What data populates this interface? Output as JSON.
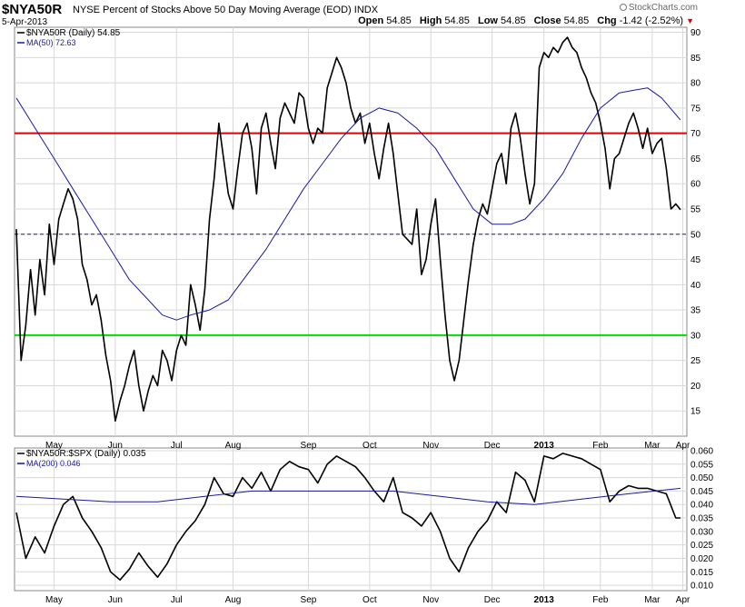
{
  "header": {
    "symbol": "$NYA50R",
    "description": "NYSE Percent of Stocks Above 50 Day Moving Average (EOD)  INDX",
    "date": "5-Apr-2013",
    "credit": "StockCharts.com",
    "open_label": "Open",
    "open": "54.85",
    "high_label": "High",
    "high": "54.85",
    "low_label": "Low",
    "low": "54.85",
    "close_label": "Close",
    "close": "54.85",
    "chg_label": "Chg",
    "chg": "-1.42 (-2.52%)",
    "chg_icon": "down-triangle-icon"
  },
  "colors": {
    "price": "#000000",
    "ma": "#1a1aa0",
    "red_line": "#e00000",
    "green_line": "#00dd00",
    "dash": "#1a1aa0",
    "grid": "#d8d8d8"
  },
  "x_axis": [
    "May",
    "Jun",
    "Jul",
    "Aug",
    "Sep",
    "Oct",
    "Nov",
    "Dec",
    "2013",
    "Feb",
    "Mar",
    "Apr"
  ],
  "chart_data": [
    {
      "type": "line",
      "legend": [
        "$NYA50R (Daily) 54.85",
        "MA(50) 72.63"
      ],
      "ylim": [
        10,
        91
      ],
      "yticks": [
        15,
        20,
        25,
        30,
        35,
        40,
        45,
        50,
        55,
        60,
        65,
        70,
        75,
        80,
        85,
        90
      ],
      "reference_lines": [
        70,
        50,
        30
      ],
      "series": [
        {
          "name": "$NYA50R (Daily) 54.85",
          "points": [
            [
              0,
              51
            ],
            [
              1,
              25
            ],
            [
              2,
              32
            ],
            [
              3,
              43
            ],
            [
              4,
              34
            ],
            [
              5,
              45
            ],
            [
              6,
              38
            ],
            [
              7,
              52
            ],
            [
              8,
              44
            ],
            [
              9,
              53
            ],
            [
              10,
              56
            ],
            [
              11,
              59
            ],
            [
              12,
              57
            ],
            [
              13,
              53
            ],
            [
              14,
              44
            ],
            [
              15,
              41
            ],
            [
              16,
              36
            ],
            [
              17,
              38
            ],
            [
              18,
              33
            ],
            [
              19,
              26
            ],
            [
              20,
              21
            ],
            [
              21,
              13
            ],
            [
              22,
              17
            ],
            [
              23,
              20
            ],
            [
              24,
              24
            ],
            [
              25,
              27
            ],
            [
              26,
              20
            ],
            [
              27,
              15
            ],
            [
              28,
              19
            ],
            [
              29,
              22
            ],
            [
              30,
              20
            ],
            [
              31,
              27
            ],
            [
              32,
              25
            ],
            [
              33,
              21
            ],
            [
              34,
              27
            ],
            [
              35,
              30
            ],
            [
              36,
              28
            ],
            [
              37,
              40
            ],
            [
              38,
              36
            ],
            [
              39,
              31
            ],
            [
              40,
              39
            ],
            [
              41,
              53
            ],
            [
              42,
              61
            ],
            [
              43,
              72
            ],
            [
              44,
              65
            ],
            [
              45,
              58
            ],
            [
              46,
              55
            ],
            [
              47,
              63
            ],
            [
              48,
              70
            ],
            [
              49,
              72
            ],
            [
              50,
              67
            ],
            [
              51,
              58
            ],
            [
              52,
              71
            ],
            [
              53,
              74
            ],
            [
              54,
              68
            ],
            [
              55,
              63
            ],
            [
              56,
              73
            ],
            [
              57,
              76
            ],
            [
              58,
              74
            ],
            [
              59,
              72
            ],
            [
              60,
              78
            ],
            [
              61,
              77
            ],
            [
              62,
              71
            ],
            [
              63,
              68
            ],
            [
              64,
              71
            ],
            [
              65,
              70
            ],
            [
              66,
              79
            ],
            [
              67,
              82
            ],
            [
              68,
              85
            ],
            [
              69,
              83
            ],
            [
              70,
              80
            ],
            [
              71,
              75
            ],
            [
              72,
              72
            ],
            [
              73,
              74
            ],
            [
              74,
              68
            ],
            [
              75,
              72
            ],
            [
              76,
              66
            ],
            [
              77,
              61
            ],
            [
              78,
              67
            ],
            [
              79,
              72
            ],
            [
              80,
              66
            ],
            [
              81,
              58
            ],
            [
              82,
              50
            ],
            [
              83,
              49
            ],
            [
              84,
              48
            ],
            [
              85,
              55
            ],
            [
              86,
              42
            ],
            [
              87,
              45
            ],
            [
              88,
              52
            ],
            [
              89,
              57
            ],
            [
              90,
              45
            ],
            [
              91,
              34
            ],
            [
              92,
              25
            ],
            [
              93,
              21
            ],
            [
              94,
              25
            ],
            [
              95,
              33
            ],
            [
              96,
              41
            ],
            [
              97,
              48
            ],
            [
              98,
              53
            ],
            [
              99,
              56
            ],
            [
              100,
              54
            ],
            [
              101,
              59
            ],
            [
              102,
              64
            ],
            [
              103,
              66
            ],
            [
              104,
              60
            ],
            [
              105,
              71
            ],
            [
              106,
              74
            ],
            [
              107,
              69
            ],
            [
              108,
              62
            ],
            [
              109,
              56
            ],
            [
              110,
              60
            ],
            [
              111,
              83
            ],
            [
              112,
              86
            ],
            [
              113,
              85
            ],
            [
              114,
              87
            ],
            [
              115,
              86
            ],
            [
              116,
              88
            ],
            [
              117,
              89
            ],
            [
              118,
              87
            ],
            [
              119,
              86
            ],
            [
              120,
              83
            ],
            [
              121,
              81
            ],
            [
              122,
              78
            ],
            [
              123,
              76
            ],
            [
              124,
              72
            ],
            [
              125,
              67
            ],
            [
              126,
              59
            ],
            [
              127,
              65
            ],
            [
              128,
              66
            ],
            [
              129,
              69
            ],
            [
              130,
              72
            ],
            [
              131,
              74
            ],
            [
              132,
              71
            ],
            [
              133,
              67
            ],
            [
              134,
              71
            ],
            [
              135,
              66
            ],
            [
              136,
              68
            ],
            [
              137,
              69
            ],
            [
              138,
              63
            ],
            [
              139,
              55
            ],
            [
              140,
              56
            ],
            [
              141,
              54.85
            ]
          ]
        },
        {
          "name": "MA(50) 72.63",
          "points": [
            [
              0,
              77
            ],
            [
              4,
              71
            ],
            [
              8,
              65
            ],
            [
              12,
              59
            ],
            [
              16,
              53
            ],
            [
              20,
              47
            ],
            [
              24,
              41
            ],
            [
              28,
              37
            ],
            [
              31,
              34
            ],
            [
              34,
              33
            ],
            [
              37,
              34
            ],
            [
              41,
              35
            ],
            [
              45,
              37
            ],
            [
              49,
              42
            ],
            [
              53,
              47
            ],
            [
              57,
              53
            ],
            [
              61,
              59
            ],
            [
              65,
              64
            ],
            [
              69,
              69
            ],
            [
              73,
              73
            ],
            [
              77,
              75
            ],
            [
              81,
              74
            ],
            [
              85,
              71
            ],
            [
              89,
              67
            ],
            [
              93,
              61
            ],
            [
              97,
              55
            ],
            [
              101,
              52
            ],
            [
              105,
              52
            ],
            [
              108,
              53
            ],
            [
              112,
              57
            ],
            [
              116,
              62
            ],
            [
              120,
              69
            ],
            [
              124,
              75
            ],
            [
              128,
              78
            ],
            [
              131,
              78.5
            ],
            [
              134,
              79
            ],
            [
              137,
              77
            ],
            [
              141,
              72.63
            ]
          ]
        }
      ]
    },
    {
      "type": "line",
      "legend": [
        "$NYA50R:$SPX (Daily) 0.035",
        "MA(200) 0.046"
      ],
      "ylim": [
        0.008,
        0.061
      ],
      "yticks": [
        0.01,
        0.015,
        0.02,
        0.025,
        0.03,
        0.035,
        0.04,
        0.045,
        0.05,
        0.055,
        0.06
      ],
      "series": [
        {
          "name": "$NYA50R:$SPX (Daily) 0.035",
          "points": [
            [
              0,
              0.037
            ],
            [
              2,
              0.02
            ],
            [
              4,
              0.028
            ],
            [
              6,
              0.022
            ],
            [
              8,
              0.032
            ],
            [
              10,
              0.04
            ],
            [
              12,
              0.043
            ],
            [
              14,
              0.035
            ],
            [
              16,
              0.03
            ],
            [
              18,
              0.024
            ],
            [
              20,
              0.015
            ],
            [
              22,
              0.012
            ],
            [
              24,
              0.016
            ],
            [
              26,
              0.022
            ],
            [
              28,
              0.017
            ],
            [
              30,
              0.013
            ],
            [
              32,
              0.018
            ],
            [
              34,
              0.025
            ],
            [
              36,
              0.03
            ],
            [
              38,
              0.034
            ],
            [
              40,
              0.04
            ],
            [
              42,
              0.05
            ],
            [
              44,
              0.044
            ],
            [
              46,
              0.043
            ],
            [
              48,
              0.05
            ],
            [
              50,
              0.046
            ],
            [
              52,
              0.052
            ],
            [
              54,
              0.045
            ],
            [
              56,
              0.053
            ],
            [
              58,
              0.056
            ],
            [
              60,
              0.054
            ],
            [
              62,
              0.053
            ],
            [
              64,
              0.048
            ],
            [
              66,
              0.055
            ],
            [
              68,
              0.058
            ],
            [
              70,
              0.056
            ],
            [
              72,
              0.054
            ],
            [
              74,
              0.05
            ],
            [
              76,
              0.045
            ],
            [
              78,
              0.041
            ],
            [
              80,
              0.05
            ],
            [
              82,
              0.037
            ],
            [
              84,
              0.035
            ],
            [
              86,
              0.032
            ],
            [
              88,
              0.037
            ],
            [
              90,
              0.03
            ],
            [
              92,
              0.02
            ],
            [
              94,
              0.015
            ],
            [
              96,
              0.024
            ],
            [
              98,
              0.03
            ],
            [
              100,
              0.034
            ],
            [
              102,
              0.041
            ],
            [
              104,
              0.037
            ],
            [
              106,
              0.052
            ],
            [
              108,
              0.049
            ],
            [
              110,
              0.041
            ],
            [
              112,
              0.058
            ],
            [
              114,
              0.057
            ],
            [
              116,
              0.059
            ],
            [
              118,
              0.058
            ],
            [
              120,
              0.057
            ],
            [
              122,
              0.055
            ],
            [
              124,
              0.053
            ],
            [
              126,
              0.041
            ],
            [
              128,
              0.045
            ],
            [
              130,
              0.047
            ],
            [
              132,
              0.046
            ],
            [
              134,
              0.046
            ],
            [
              136,
              0.045
            ],
            [
              138,
              0.044
            ],
            [
              140,
              0.035
            ],
            [
              141,
              0.035
            ]
          ]
        },
        {
          "name": "MA(200) 0.046",
          "points": [
            [
              0,
              0.043
            ],
            [
              10,
              0.042
            ],
            [
              20,
              0.041
            ],
            [
              30,
              0.041
            ],
            [
              40,
              0.043
            ],
            [
              50,
              0.045
            ],
            [
              60,
              0.045
            ],
            [
              70,
              0.045
            ],
            [
              80,
              0.045
            ],
            [
              90,
              0.043
            ],
            [
              100,
              0.041
            ],
            [
              110,
              0.04
            ],
            [
              120,
              0.042
            ],
            [
              130,
              0.044
            ],
            [
              141,
              0.046
            ]
          ]
        }
      ]
    }
  ]
}
